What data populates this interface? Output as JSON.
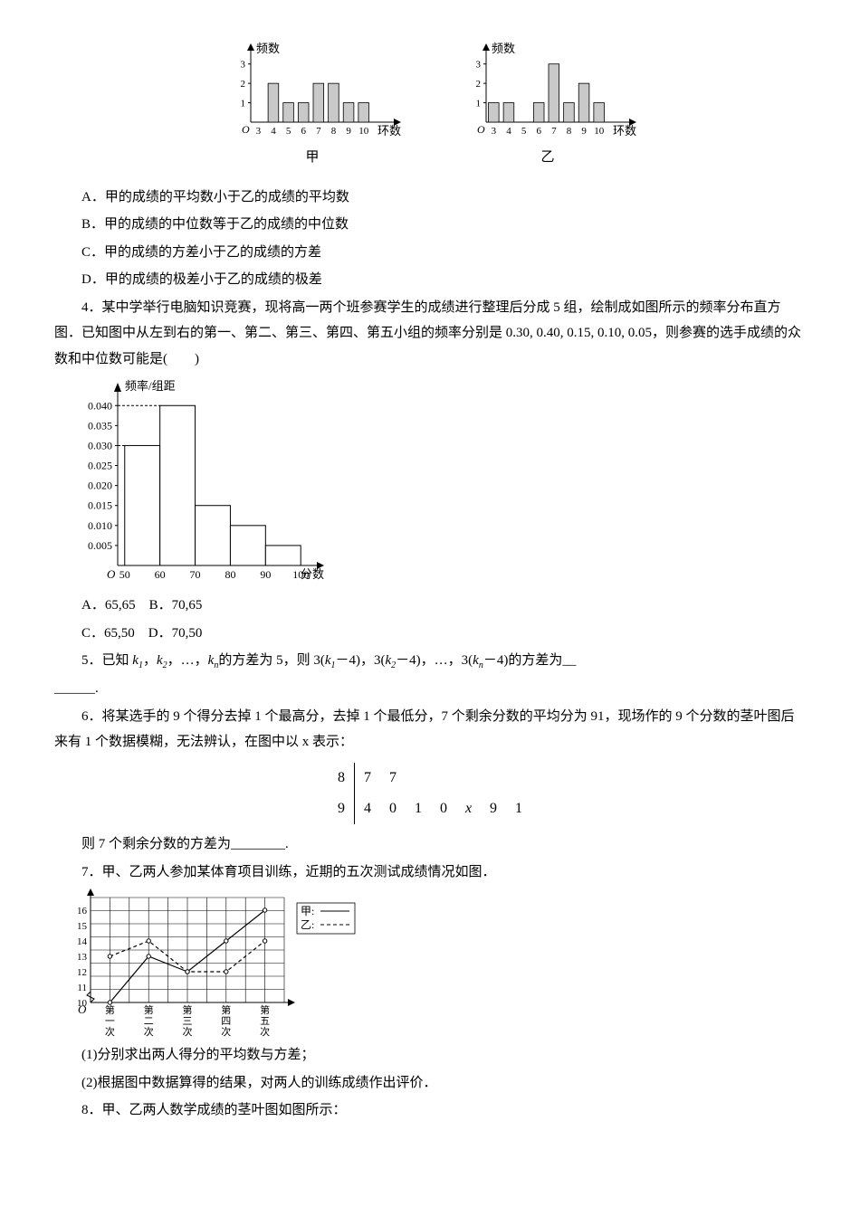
{
  "chart_jia": {
    "ylabel": "频数",
    "xlabel": "环数",
    "caption": "甲",
    "ticks_x": [
      3,
      4,
      5,
      6,
      7,
      8,
      9,
      10
    ],
    "ticks_y": [
      1,
      2,
      3
    ],
    "bars": [
      {
        "x": 4,
        "h": 2
      },
      {
        "x": 5,
        "h": 1
      },
      {
        "x": 6,
        "h": 1
      },
      {
        "x": 7,
        "h": 2
      },
      {
        "x": 8,
        "h": 2
      },
      {
        "x": 9,
        "h": 1
      },
      {
        "x": 10,
        "h": 1
      }
    ],
    "axis_color": "#000",
    "bar_color": "#c9c9c9",
    "bar_border": "#000",
    "bg": "#fff"
  },
  "chart_yi": {
    "ylabel": "频数",
    "xlabel": "环数",
    "caption": "乙",
    "ticks_x": [
      3,
      4,
      5,
      6,
      7,
      8,
      9,
      10
    ],
    "ticks_y": [
      1,
      2,
      3
    ],
    "bars": [
      {
        "x": 3,
        "h": 1
      },
      {
        "x": 4,
        "h": 1
      },
      {
        "x": 6,
        "h": 1
      },
      {
        "x": 7,
        "h": 3
      },
      {
        "x": 8,
        "h": 1
      },
      {
        "x": 9,
        "h": 2
      },
      {
        "x": 10,
        "h": 1
      }
    ],
    "axis_color": "#000",
    "bar_color": "#c9c9c9",
    "bar_border": "#000",
    "bg": "#fff"
  },
  "q3": {
    "optA": "A．甲的成绩的平均数小于乙的成绩的平均数",
    "optB": "B．甲的成绩的中位数等于乙的成绩的中位数",
    "optC": "C．甲的成绩的方差小于乙的成绩的方差",
    "optD": "D．甲的成绩的极差小于乙的成绩的极差"
  },
  "q4": {
    "stem": "4．某中学举行电脑知识竞赛，现将高一两个班参赛学生的成绩进行整理后分成 5 组，绘制成如图所示的频率分布直方图．已知图中从左到右的第一、第二、第三、第四、第五小组的频率分别是 0.30, 0.40, 0.15, 0.10, 0.05，则参赛的选手成绩的众数和中位数可能是(　　)",
    "histogram": {
      "ylabel": "频率/组距",
      "xlabel": "分数",
      "xticks": [
        50,
        60,
        70,
        80,
        90,
        100
      ],
      "yticks": [
        0.005,
        0.01,
        0.015,
        0.02,
        0.025,
        0.03,
        0.035,
        0.04
      ],
      "bars": [
        {
          "from": 50,
          "to": 60,
          "h": 0.03
        },
        {
          "from": 60,
          "to": 70,
          "h": 0.04
        },
        {
          "from": 70,
          "to": 80,
          "h": 0.015
        },
        {
          "from": 80,
          "to": 90,
          "h": 0.01
        },
        {
          "from": 90,
          "to": 100,
          "h": 0.005
        }
      ],
      "axis_color": "#000",
      "bar_fill": "#fff",
      "bar_border": "#000"
    },
    "optA": "A．65,65　B．70,65",
    "optC": "C．65,50　D．70,50"
  },
  "q5": {
    "text_a": "5．已知 ",
    "k1": "k",
    "s1": "1",
    "comma1": "，",
    "k2": "k",
    "s2": "2",
    "dots": "，…，",
    "kn": "k",
    "sn": "n",
    "text_b": "的方差为 5，则 3(",
    "k1b": "k",
    "s1b": "1",
    "m4a": "－4)，3(",
    "k2b": "k",
    "s2b": "2",
    "m4b": "－4)，…，3(",
    "knb": "k",
    "snb": "n",
    "m4c": "－4)的方差为__",
    "tail": "______."
  },
  "q6": {
    "text": "6．将某选手的 9 个得分去掉 1 个最高分，去掉 1 个最低分，7 个剩余分数的平均分为 91，现场作的 9 个分数的茎叶图后来有 1 个数据模糊，无法辨认，在图中以 x 表示：",
    "stemleaf": {
      "rows": [
        {
          "stem": "8",
          "leaves": [
            "7",
            "7"
          ]
        },
        {
          "stem": "9",
          "leaves": [
            "4",
            "0",
            "1",
            "0",
            "x",
            "9",
            "1"
          ]
        }
      ]
    },
    "tail": "则 7 个剩余分数的方差为________."
  },
  "q7": {
    "text": "7．甲、乙两人参加某体育项目训练，近期的五次测试成绩情况如图．",
    "chart": {
      "yticks": [
        10,
        11,
        12,
        13,
        14,
        15,
        16
      ],
      "xticks": [
        "第一次",
        "第二次",
        "第三次",
        "第四次",
        "第五次"
      ],
      "legend": {
        "jia": "甲:",
        "yi": "乙:"
      },
      "series_jia": {
        "values": [
          10,
          13,
          12,
          14,
          16
        ],
        "color": "#000",
        "style": "solid"
      },
      "series_yi": {
        "values": [
          13,
          14,
          12,
          12,
          14
        ],
        "color": "#000",
        "style": "dashed"
      },
      "grid_color": "#000",
      "bg": "#fff"
    },
    "sub1": "(1)分别求出两人得分的平均数与方差；",
    "sub2": "(2)根据图中数据算得的结果，对两人的训练成绩作出评价．"
  },
  "q8": {
    "text": "8．甲、乙两人数学成绩的茎叶图如图所示："
  }
}
